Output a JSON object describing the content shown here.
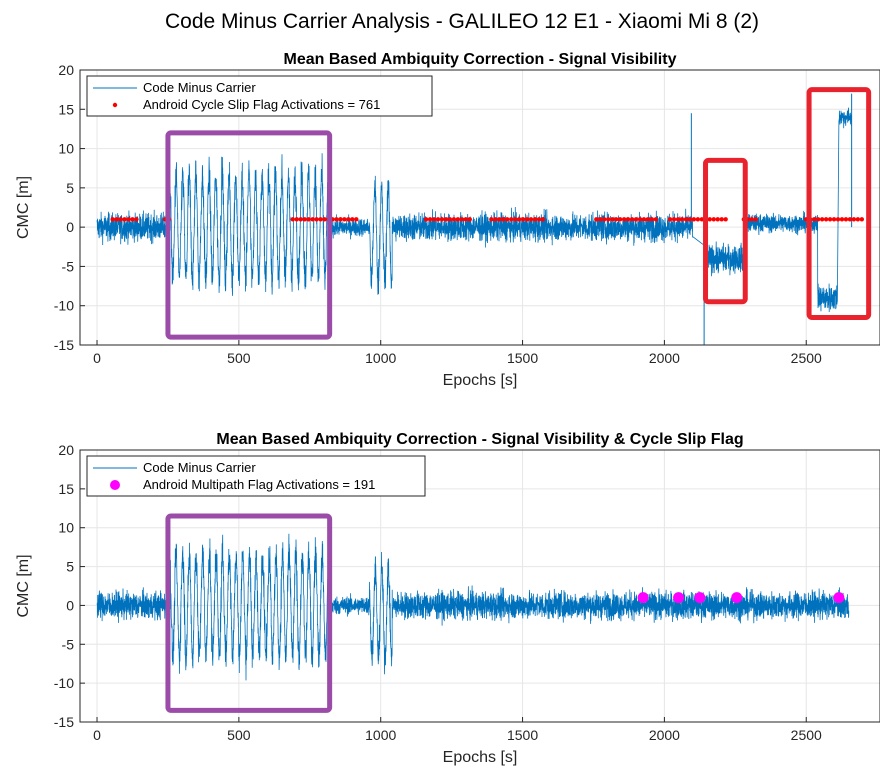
{
  "suptitle": "Code Minus Carrier Analysis - GALILEO 12 E1 - Xiaomi Mi 8 (2)",
  "colors": {
    "cmc_line": "#0072BD",
    "slip_marker": "#FF0000",
    "multipath_marker": "#FF00FF",
    "box_purple": "#9B4BA8",
    "box_red": "#E8232E",
    "grid": "#e6e6e6",
    "axis": "#262626"
  },
  "chart_data": [
    {
      "type": "line",
      "title": "Mean Based Ambiquity Correction - Signal Visibility",
      "xlabel": "Epochs [s]",
      "ylabel": "CMC [m]",
      "xlim": [
        -60,
        2760
      ],
      "ylim": [
        -15,
        20
      ],
      "xticks": [
        0,
        500,
        1000,
        1500,
        2000,
        2500
      ],
      "yticks": [
        -15,
        -10,
        -5,
        0,
        5,
        10,
        15,
        20
      ],
      "grid": true,
      "legend_position": "top-left",
      "legend": [
        "Code Minus Carrier",
        "Android Cycle Slip Flag Activations = 761"
      ],
      "series": [
        {
          "name": "Code Minus Carrier",
          "kind": "line",
          "x_range": [
            0,
            2695
          ],
          "envelope_segments": [
            {
              "x": [
                0,
                250
              ],
              "amplitude": 3,
              "offset": 0
            },
            {
              "x": [
                250,
                820
              ],
              "amplitude": 10,
              "offset": 0
            },
            {
              "x": [
                820,
                960
              ],
              "amplitude": 2,
              "offset": 0
            },
            {
              "x": [
                960,
                1040
              ],
              "amplitude": 9,
              "offset": -1
            },
            {
              "x": [
                1040,
                2100
              ],
              "amplitude": 3,
              "offset": 0
            },
            {
              "x": [
                2150,
                2280
              ],
              "amplitude": 3,
              "offset": -4
            },
            {
              "x": [
                2280,
                2540
              ],
              "amplitude": 2,
              "offset": 0.5
            },
            {
              "x": [
                2540,
                2610
              ],
              "amplitude": 3,
              "offset": -9
            },
            {
              "x": [
                2615,
                2660
              ],
              "amplitude": 2,
              "offset": 14
            }
          ],
          "peaks": [
            {
              "x": 2140,
              "y": -15
            },
            {
              "x": 2095,
              "y": 14.5
            },
            {
              "x": 2660,
              "y": 17
            }
          ]
        },
        {
          "name": "Android Cycle Slip Flag Activations = 761",
          "kind": "markers",
          "y": 1,
          "x_intervals": [
            [
              55,
              140
            ],
            [
              240,
              265
            ],
            [
              690,
              920
            ],
            [
              1160,
              1320
            ],
            [
              1390,
              1580
            ],
            [
              1760,
              1970
            ],
            [
              2020,
              2220
            ],
            [
              2280,
              2330
            ],
            [
              2500,
              2700
            ]
          ]
        }
      ],
      "highlight_boxes": [
        {
          "color": "purple",
          "x": [
            250,
            820
          ],
          "y": [
            -14,
            12
          ]
        },
        {
          "color": "red",
          "x": [
            2145,
            2285
          ],
          "y": [
            -9.5,
            8.5
          ]
        },
        {
          "color": "red",
          "x": [
            2510,
            2720
          ],
          "y": [
            -11.5,
            17.5
          ]
        }
      ]
    },
    {
      "type": "line",
      "title": "Mean Based Ambiquity Correction - Signal Visibility & Cycle Slip Flag",
      "xlabel": "Epochs [s]",
      "ylabel": "CMC [m]",
      "xlim": [
        -60,
        2760
      ],
      "ylim": [
        -15,
        20
      ],
      "xticks": [
        0,
        500,
        1000,
        1500,
        2000,
        2500
      ],
      "yticks": [
        -15,
        -10,
        -5,
        0,
        5,
        10,
        15,
        20
      ],
      "grid": true,
      "legend_position": "top-left",
      "legend": [
        "Code Minus Carrier",
        "Android Multipath Flag Activations = 191"
      ],
      "series": [
        {
          "name": "Code Minus Carrier",
          "kind": "line",
          "x_range": [
            0,
            2650
          ],
          "envelope_segments": [
            {
              "x": [
                0,
                250
              ],
              "amplitude": 3,
              "offset": 0
            },
            {
              "x": [
                250,
                820
              ],
              "amplitude": 10,
              "offset": 0
            },
            {
              "x": [
                820,
                960
              ],
              "amplitude": 2,
              "offset": 0
            },
            {
              "x": [
                960,
                1040
              ],
              "amplitude": 9,
              "offset": -1
            },
            {
              "x": [
                1040,
                2650
              ],
              "amplitude": 3,
              "offset": 0
            }
          ],
          "peaks": []
        },
        {
          "name": "Android Multipath Flag Activations = 191",
          "kind": "markers",
          "y": 1,
          "x_points": [
            1925,
            2050,
            2125,
            2255,
            2615
          ]
        }
      ],
      "highlight_boxes": [
        {
          "color": "purple",
          "x": [
            250,
            820
          ],
          "y": [
            -13.5,
            11.5
          ]
        }
      ]
    }
  ]
}
